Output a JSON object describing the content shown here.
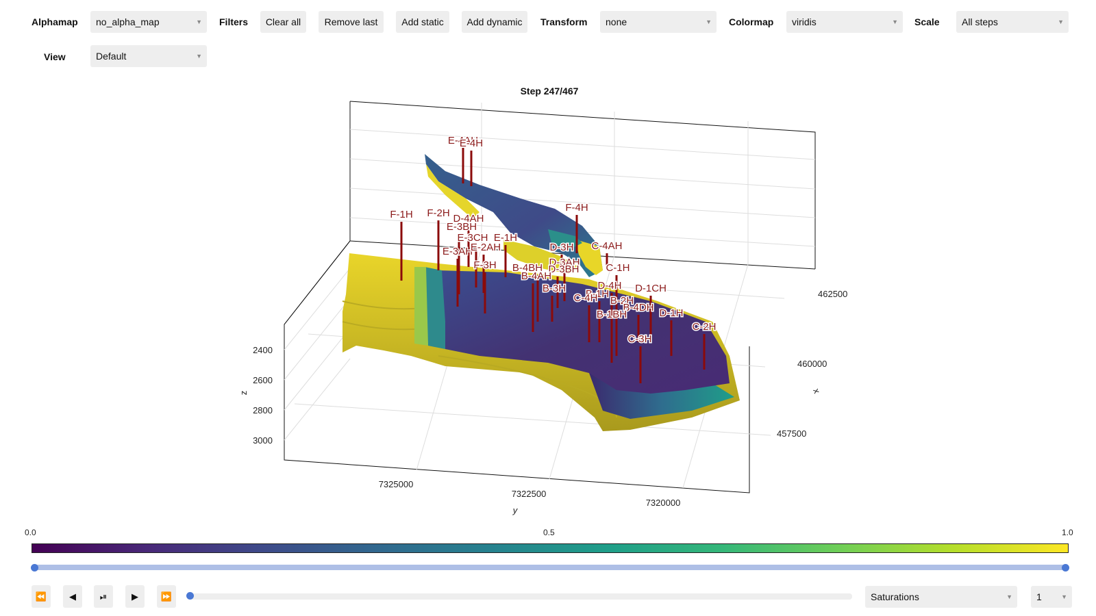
{
  "toolbar": {
    "alphamap_label": "Alphamap",
    "alphamap_value": "no_alpha_map",
    "filters_label": "Filters",
    "clear_all": "Clear all",
    "remove_last": "Remove last",
    "add_static": "Add static",
    "add_dynamic": "Add dynamic",
    "transform_label": "Transform",
    "transform_value": "none",
    "colormap_label": "Colormap",
    "colormap_value": "viridis",
    "scale_label": "Scale",
    "scale_value": "All steps",
    "view_label": "View",
    "view_value": "Default",
    "caret": "▼"
  },
  "plot": {
    "title": "Step 247/467",
    "z_axis_label": "z",
    "y_axis_label": "y",
    "x_axis_label": "x",
    "z_ticks": [
      "2400",
      "2600",
      "2800",
      "3000"
    ],
    "y_ticks": [
      "7325000",
      "7322500",
      "7320000"
    ],
    "x_ticks": [
      "462500",
      "460000",
      "457500"
    ],
    "wells": [
      "E-4AH",
      "E-4H",
      "F-1H",
      "F-2H",
      "D-4AH",
      "E-3BH",
      "E-3CH",
      "E-1H",
      "E-3AH",
      "E-2AH",
      "F-4H",
      "D-3H",
      "C-4AH",
      "D-3AH",
      "F-3H",
      "B-4BH",
      "D-3BH",
      "C-1H",
      "B-4AH",
      "B-3H",
      "D-4H",
      "D-1CH",
      "B-1H",
      "C-4H",
      "B-2H",
      "B-4DH",
      "B-1BH",
      "D-1H",
      "C-2H",
      "C-3H"
    ]
  },
  "colorbar": {
    "min_label": "0.0",
    "mid_label": "0.5",
    "max_label": "1.0",
    "colors": [
      "#440154",
      "#482878",
      "#3e4a89",
      "#31688e",
      "#26828e",
      "#1f9e89",
      "#35b779",
      "#6ece58",
      "#b5de2b",
      "#fde725"
    ]
  },
  "playback": {
    "rewind": "⏪",
    "step_back": "◀",
    "play_pause": "⏯",
    "play": "▶",
    "fast_forward": "⏩",
    "step_fraction": 0.0,
    "variable_value": "Saturations",
    "speed_value": "1"
  }
}
